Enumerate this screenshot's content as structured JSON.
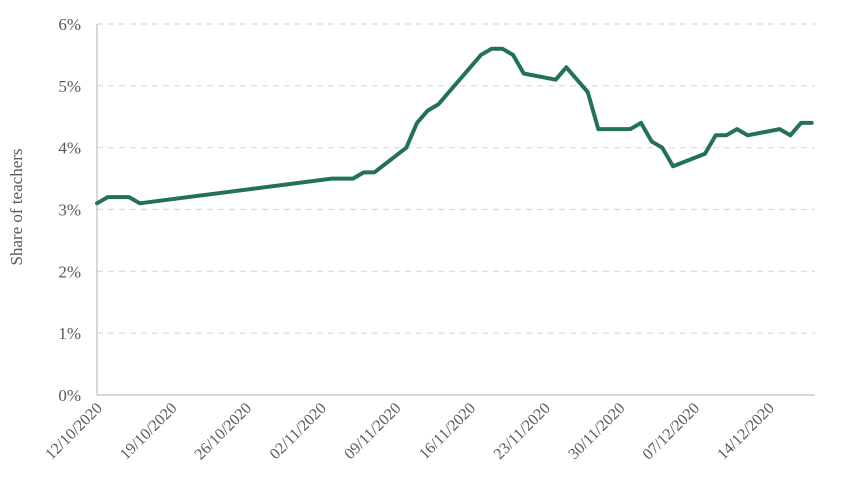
{
  "chart_data": {
    "type": "line",
    "title": "",
    "xlabel": "",
    "ylabel": "Share of teachers",
    "x_start": "12/10/2020",
    "x_end": "17/12/2020",
    "xlim": [
      "12/10/2020",
      "17/12/2020"
    ],
    "ylim": [
      0,
      6
    ],
    "y_tick_values": [
      0,
      1,
      2,
      3,
      4,
      5,
      6
    ],
    "y_tick_labels": [
      "0%",
      "1%",
      "2%",
      "3%",
      "4%",
      "5%",
      "6%"
    ],
    "x_tick_labels": [
      "12/10/2020",
      "19/10/2020",
      "26/10/2020",
      "02/11/2020",
      "09/11/2020",
      "16/11/2020",
      "23/11/2020",
      "30/11/2020",
      "07/12/2020",
      "14/12/2020"
    ],
    "x_tick_dates": [
      "12/10/2020",
      "19/10/2020",
      "26/10/2020",
      "02/11/2020",
      "09/11/2020",
      "16/11/2020",
      "23/11/2020",
      "30/11/2020",
      "07/12/2020",
      "14/12/2020"
    ],
    "grid": "horizontal-dashed",
    "legend": "none",
    "line_color": "#24715A",
    "grid_color": "#d9d9d9",
    "axis_color": "#bfbfbf",
    "series": [
      {
        "points": [
          {
            "x": "12/10/2020",
            "y": 3.1
          },
          {
            "x": "13/10/2020",
            "y": 3.2
          },
          {
            "x": "14/10/2020",
            "y": 3.2
          },
          {
            "x": "15/10/2020",
            "y": 3.2
          },
          {
            "x": "16/10/2020",
            "y": 3.1
          },
          {
            "x": "03/11/2020",
            "y": 3.5
          },
          {
            "x": "04/11/2020",
            "y": 3.5
          },
          {
            "x": "05/11/2020",
            "y": 3.5
          },
          {
            "x": "06/11/2020",
            "y": 3.6
          },
          {
            "x": "07/11/2020",
            "y": 3.6
          },
          {
            "x": "10/11/2020",
            "y": 4.0
          },
          {
            "x": "11/11/2020",
            "y": 4.4
          },
          {
            "x": "12/11/2020",
            "y": 4.6
          },
          {
            "x": "13/11/2020",
            "y": 4.7
          },
          {
            "x": "14/11/2020",
            "y": 4.9
          },
          {
            "x": "17/11/2020",
            "y": 5.5
          },
          {
            "x": "18/11/2020",
            "y": 5.6
          },
          {
            "x": "19/11/2020",
            "y": 5.6
          },
          {
            "x": "20/11/2020",
            "y": 5.5
          },
          {
            "x": "21/11/2020",
            "y": 5.2
          },
          {
            "x": "24/11/2020",
            "y": 5.1
          },
          {
            "x": "25/11/2020",
            "y": 5.3
          },
          {
            "x": "26/11/2020",
            "y": 5.1
          },
          {
            "x": "27/11/2020",
            "y": 4.9
          },
          {
            "x": "28/11/2020",
            "y": 4.3
          },
          {
            "x": "01/12/2020",
            "y": 4.3
          },
          {
            "x": "02/12/2020",
            "y": 4.4
          },
          {
            "x": "03/12/2020",
            "y": 4.1
          },
          {
            "x": "04/12/2020",
            "y": 4.0
          },
          {
            "x": "05/12/2020",
            "y": 3.7
          },
          {
            "x": "08/12/2020",
            "y": 3.9
          },
          {
            "x": "09/12/2020",
            "y": 4.2
          },
          {
            "x": "10/12/2020",
            "y": 4.2
          },
          {
            "x": "11/12/2020",
            "y": 4.3
          },
          {
            "x": "12/12/2020",
            "y": 4.2
          },
          {
            "x": "15/12/2020",
            "y": 4.3
          },
          {
            "x": "16/12/2020",
            "y": 4.2
          },
          {
            "x": "17/12/2020",
            "y": 4.4
          },
          {
            "x": "18/12/2020",
            "y": 4.4
          }
        ]
      }
    ]
  }
}
